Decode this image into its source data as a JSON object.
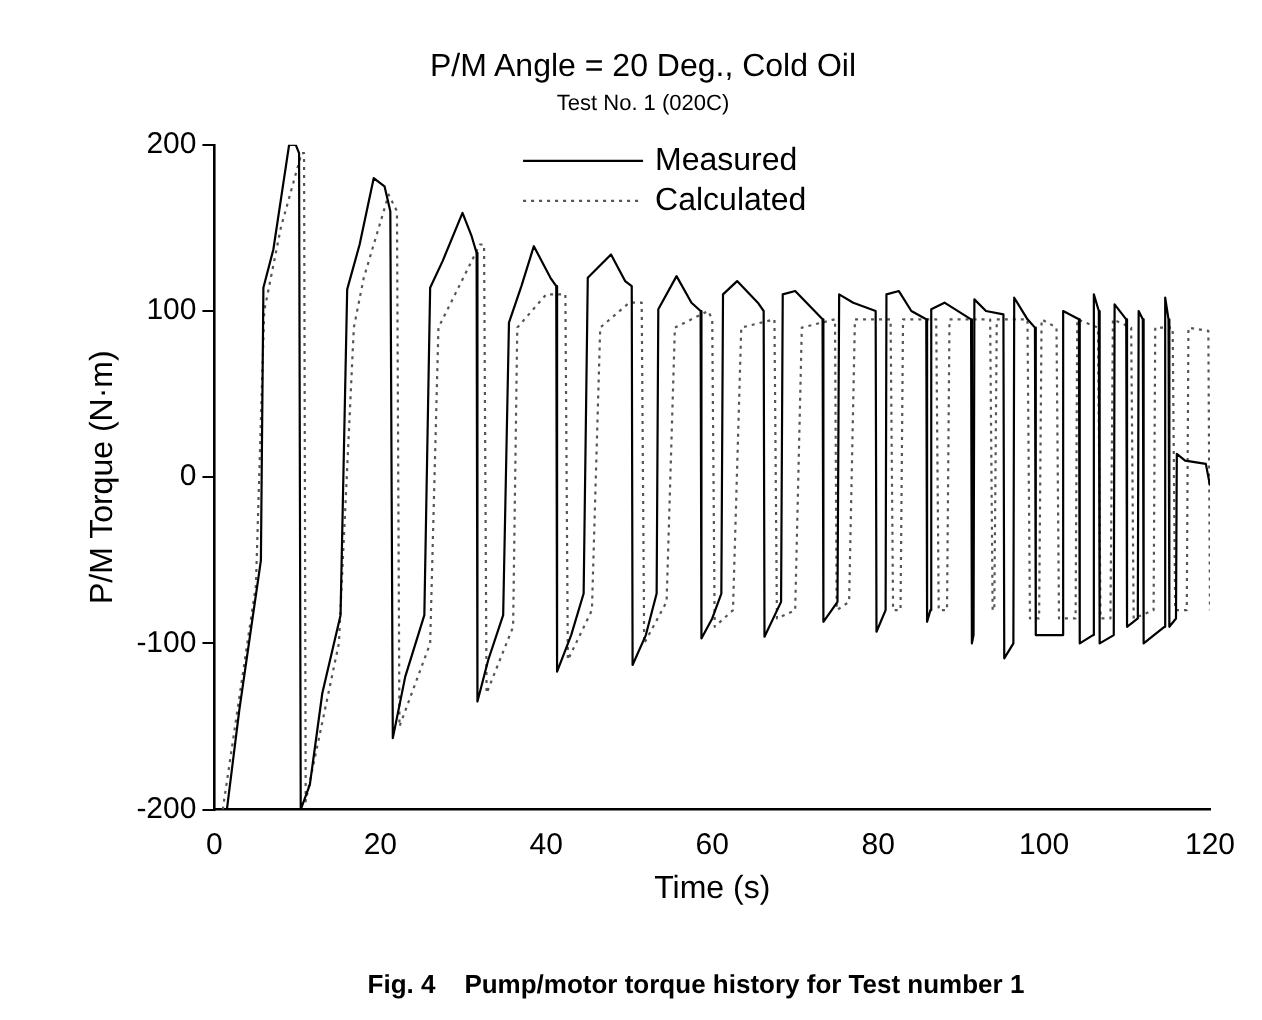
{
  "chart_data": {
    "type": "line",
    "title": "P/M Angle = 20 Deg., Cold Oil",
    "subtitle": "Test No. 1 (020C)",
    "xlabel": "Time (s)",
    "ylabel": "P/M Torque (N·m)",
    "annotations": [
      "Fig. 4    Pump/motor torque history for Test number 1"
    ],
    "xlim": [
      0,
      120
    ],
    "xticks": [
      0,
      20,
      40,
      60,
      80,
      100,
      120
    ],
    "ylim": [
      -200,
      200
    ],
    "yticks": [
      -200,
      -100,
      0,
      100,
      200
    ],
    "grid": false,
    "legend": "top",
    "marker": "none",
    "series": [
      {
        "name": "Measured",
        "color": "#000000",
        "line_style": "solid",
        "x": [
          1.5,
          3,
          5.6,
          5.9,
          7.1,
          9,
          9.8,
          10.2,
          10.4,
          11.5,
          13,
          15.2,
          16,
          17.5,
          19.2,
          20.5,
          21.2,
          21.5,
          23,
          25.3,
          26,
          27.5,
          29.9,
          31,
          31.6,
          31.7,
          33,
          34.8,
          35.5,
          37,
          38.5,
          40.5,
          41.2,
          41.3,
          43,
          44.5,
          45,
          47.8,
          49.5,
          50.3,
          50.4,
          52,
          53.3,
          53.5,
          55.7,
          57.5,
          58.6,
          58.7,
          60,
          61.1,
          61.3,
          63,
          65.5,
          66.2,
          66.3,
          68.3,
          68.5,
          70,
          73.3,
          73.4,
          75.1,
          75.3,
          77,
          79.7,
          79.8,
          80.9,
          81,
          82.5,
          84,
          85.8,
          85.9,
          86.3,
          86.4,
          88,
          91.2,
          91.3,
          91.5,
          91.6,
          93,
          95.1,
          95.2,
          96.3,
          96.4,
          98,
          98.9,
          99,
          102.2,
          102.3,
          104.2,
          104.3,
          105.9,
          106,
          106.6,
          106.7,
          108.4,
          108.5,
          109.9,
          110,
          111.3,
          111.4,
          111.9,
          112,
          114.5,
          114.6,
          115,
          115.1,
          115.9,
          116,
          117,
          119.5,
          120
        ],
        "values": [
          -200,
          -140,
          -50,
          114,
          137,
          200,
          200,
          195,
          -200,
          -185,
          -130,
          -83,
          113,
          140,
          180,
          175,
          160,
          -157,
          -120,
          -83,
          114,
          130,
          159,
          145,
          135,
          -135,
          -110,
          -83,
          93,
          115,
          139,
          120,
          115,
          -117,
          -95,
          -70,
          120,
          134,
          118,
          115,
          -113,
          -95,
          -70,
          101,
          121,
          105,
          100,
          -97,
          -85,
          -70,
          110,
          118,
          105,
          100,
          -96,
          -75,
          110,
          112,
          95,
          -87,
          -75,
          110,
          105,
          100,
          -93,
          -80,
          110,
          112,
          100,
          95,
          -87,
          -80,
          101,
          105,
          95,
          -100,
          -95,
          107,
          100,
          98,
          -109,
          -100,
          108,
          95,
          90,
          -95,
          -95,
          100,
          95,
          -100,
          -95,
          110,
          100,
          -100,
          -95,
          104,
          95,
          -90,
          -85,
          100,
          95,
          -100,
          -90,
          108,
          95,
          -90,
          -85,
          14,
          10,
          8,
          -5
        ]
      },
      {
        "name": "Calculated",
        "color": "#555555",
        "line_style": "dotted",
        "x": [
          1,
          5,
          6,
          8,
          10.5,
          10.8,
          11,
          15,
          16.8,
          18,
          21,
          22,
          22.3,
          26,
          27,
          29,
          32,
          32.5,
          32.8,
          36,
          36.5,
          40,
          42.3,
          42.6,
          45.5,
          46.5,
          50,
          51.5,
          51.8,
          54.5,
          55.5,
          59.5,
          60,
          60.3,
          62.5,
          63.5,
          67.5,
          67.8,
          70,
          70.8,
          74.8,
          75,
          76.5,
          77.2,
          81.5,
          81.8,
          82.7,
          83,
          87,
          87.3,
          88.3,
          88.6,
          93.5,
          93.8,
          94,
          94.3,
          98,
          98.3,
          99.4,
          99.7,
          101.5,
          101.8,
          103.8,
          104,
          106.5,
          106.8,
          108,
          108.3,
          110.5,
          110.8,
          113.2,
          113.4,
          115.5,
          115.8,
          117.2,
          117.4,
          119.8,
          120
        ],
        "values": [
          -200,
          -65,
          100,
          150,
          195,
          195,
          -195,
          -100,
          90,
          120,
          170,
          160,
          -150,
          -100,
          90,
          110,
          140,
          140,
          -130,
          -90,
          90,
          110,
          110,
          -110,
          -80,
          90,
          105,
          105,
          -100,
          -75,
          90,
          100,
          95,
          -90,
          -80,
          90,
          95,
          -85,
          -80,
          90,
          95,
          -80,
          -75,
          95,
          95,
          -80,
          -80,
          95,
          95,
          -80,
          -80,
          95,
          95,
          -80,
          -80,
          95,
          95,
          -85,
          -85,
          95,
          90,
          -85,
          -85,
          95,
          90,
          -85,
          -85,
          95,
          90,
          -85,
          -80,
          90,
          90,
          -80,
          -80,
          90,
          88,
          -80
        ]
      }
    ]
  }
}
